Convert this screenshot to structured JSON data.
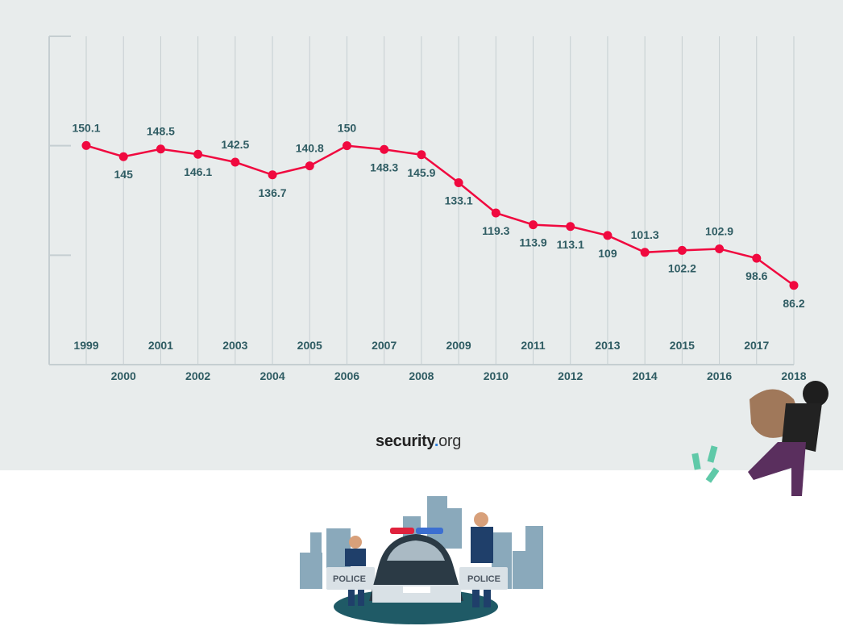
{
  "chart_data": {
    "type": "line",
    "title": "",
    "xlabel": "",
    "ylabel": "",
    "x": [
      1999,
      2000,
      2001,
      2002,
      2003,
      2004,
      2005,
      2006,
      2007,
      2008,
      2009,
      2010,
      2011,
      2012,
      2013,
      2014,
      2015,
      2016,
      2017,
      2018
    ],
    "x_tick_labels": [
      "1999",
      "2000",
      "2001",
      "2002",
      "2003",
      "2004",
      "2005",
      "2006",
      "2007",
      "2008",
      "2009",
      "2010",
      "2011",
      "2012",
      "2013",
      "2014",
      "2015",
      "2016",
      "2017",
      "2018"
    ],
    "series": [
      {
        "values": [
          150.1,
          145,
          148.5,
          146.1,
          142.5,
          136.7,
          140.8,
          150,
          148.3,
          145.9,
          133.1,
          119.3,
          113.9,
          113.1,
          109,
          101.3,
          102.2,
          102.9,
          98.6,
          86.2
        ]
      }
    ],
    "data_labels": [
      "150.1",
      "145",
      "148.5",
      "146.1",
      "142.5",
      "136.7",
      "140.8",
      "150",
      "148.3",
      "145.9",
      "133.1",
      "119.3",
      "113.9",
      "113.1",
      "109",
      "101.3",
      "102.2",
      "102.9",
      "98.6",
      "86.2"
    ],
    "data_label_above": [
      true,
      false,
      true,
      false,
      true,
      false,
      true,
      true,
      false,
      false,
      false,
      false,
      false,
      false,
      false,
      true,
      false,
      true,
      false,
      false
    ],
    "ylim": [
      50,
      200
    ],
    "y_ticks_unlabeled": [
      50,
      100,
      150,
      200
    ],
    "grid": "vertical",
    "line_color": "#f0093f",
    "label_color": "#2f5c63"
  },
  "branding": {
    "logo_word": "security",
    "logo_dot": ".",
    "logo_tld": "org"
  },
  "illustrations": {
    "police_car_text_left": "POLICE",
    "police_car_text_right": "POLICE"
  }
}
